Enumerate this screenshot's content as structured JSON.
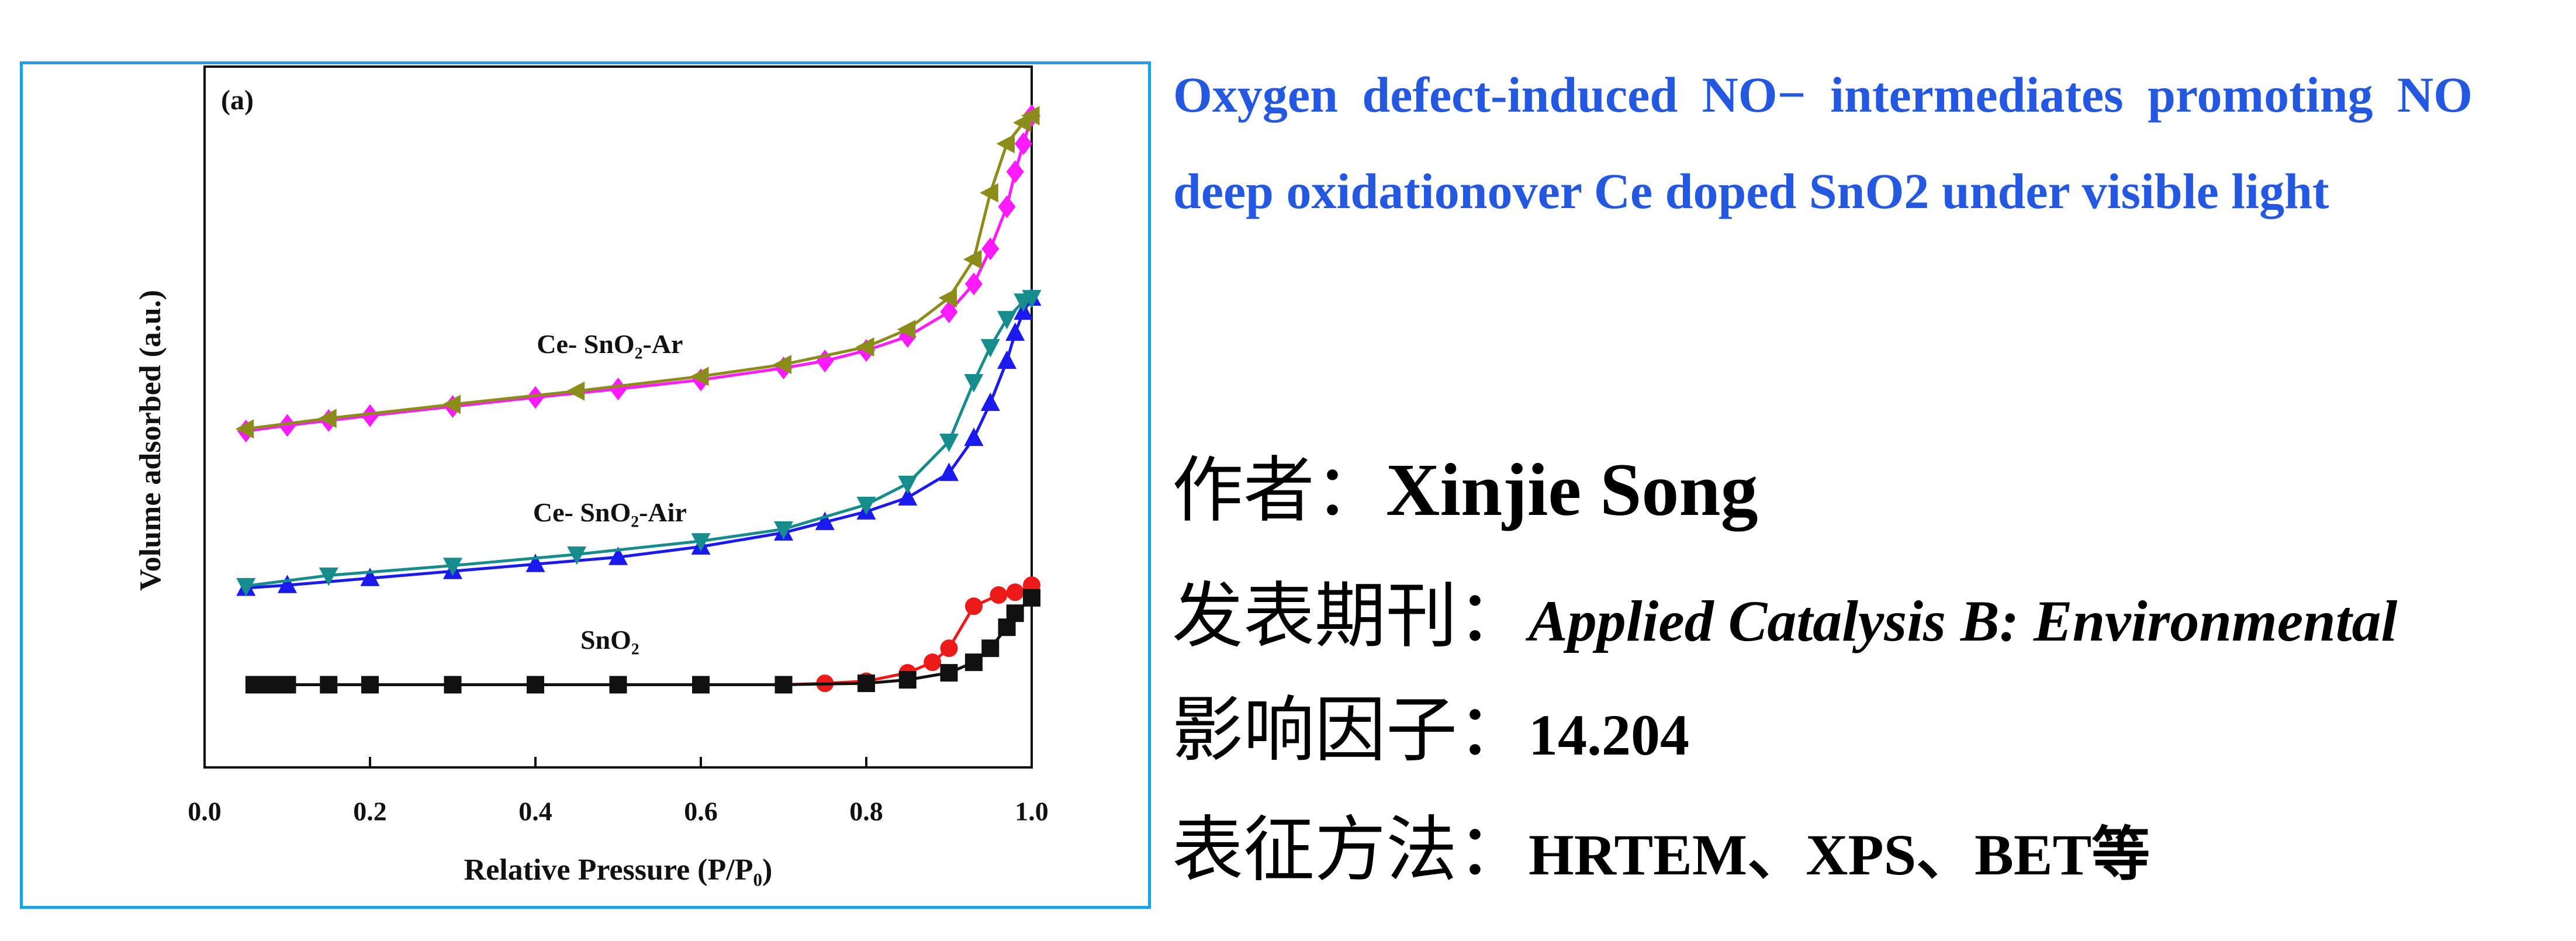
{
  "chart_data": {
    "type": "line",
    "panel_label": "(a)",
    "x_label": "Relative Pressure (P/P₀)",
    "y_label": "Volume adsorbed (a.u.)",
    "xlim": [
      0,
      1
    ],
    "ylim": [
      0,
      100
    ],
    "xticks": [
      {
        "value": 0,
        "label": "0.0"
      },
      {
        "value": 0.2,
        "label": "0.2"
      },
      {
        "value": 0.4,
        "label": "0.4"
      },
      {
        "value": 0.6,
        "label": "0.6"
      },
      {
        "value": 0.8,
        "label": "0.8"
      },
      {
        "value": 1,
        "label": "1.0"
      }
    ],
    "groups": [
      {
        "name": "Ce- SnO₂-Ar",
        "series": [
          {
            "color": "#ff1aff",
            "marker": "diamond",
            "x": [
              0.05,
              0.1,
              0.15,
              0.2,
              0.3,
              0.4,
              0.5,
              0.6,
              0.7,
              0.75,
              0.8,
              0.85,
              0.9,
              0.93,
              0.95,
              0.97,
              0.98,
              0.99,
              1.0
            ],
            "values": [
              48,
              48.8,
              49.5,
              50.2,
              51.5,
              52.8,
              54,
              55.3,
              57,
              58,
              59.5,
              61.5,
              65,
              69,
              74,
              80,
              85,
              89,
              93
            ]
          },
          {
            "color": "#8c8c1a",
            "marker": "triangle-left",
            "x": [
              0.05,
              0.15,
              0.3,
              0.45,
              0.6,
              0.7,
              0.8,
              0.85,
              0.9,
              0.93,
              0.95,
              0.97,
              0.99,
              1.0
            ],
            "values": [
              48.3,
              49.8,
              51.8,
              53.7,
              55.8,
              57.5,
              60,
              62.5,
              67,
              72.5,
              82,
              89,
              92,
              93
            ]
          }
        ]
      },
      {
        "name": "Ce- SnO₂-Air",
        "series": [
          {
            "color": "#1a1aee",
            "marker": "triangle-up",
            "x": [
              0.05,
              0.1,
              0.2,
              0.3,
              0.4,
              0.5,
              0.6,
              0.7,
              0.75,
              0.8,
              0.85,
              0.9,
              0.93,
              0.95,
              0.97,
              0.98,
              0.99,
              1.0
            ],
            "values": [
              25.6,
              26,
              27,
              28,
              29,
              30,
              31.5,
              33.5,
              35,
              36.5,
              38.5,
              42,
              47,
              52,
              58,
              62,
              65,
              67
            ]
          },
          {
            "color": "#178c8c",
            "marker": "triangle-down",
            "x": [
              0.05,
              0.15,
              0.3,
              0.45,
              0.6,
              0.7,
              0.8,
              0.85,
              0.9,
              0.93,
              0.95,
              0.97,
              0.99,
              1.0
            ],
            "values": [
              25.9,
              27.4,
              28.8,
              30.4,
              32.3,
              34,
              37.5,
              40.5,
              46.5,
              55,
              60,
              64,
              66.5,
              67
            ]
          }
        ]
      },
      {
        "name": "SnO₂",
        "series": [
          {
            "color": "#ee1a1a",
            "marker": "circle",
            "x": [
              0.06,
              0.1,
              0.15,
              0.2,
              0.3,
              0.4,
              0.5,
              0.6,
              0.7,
              0.75,
              0.8,
              0.85,
              0.88,
              0.9,
              0.93,
              0.96,
              0.98,
              1.0
            ],
            "values": [
              11.8,
              11.8,
              11.8,
              11.8,
              11.8,
              11.8,
              11.8,
              11.8,
              11.8,
              12,
              12.3,
              13.5,
              15,
              17,
              23,
              24.6,
              25,
              26
            ]
          },
          {
            "color": "#111111",
            "marker": "square",
            "x": [
              0.06,
              0.08,
              0.1,
              0.15,
              0.2,
              0.3,
              0.4,
              0.5,
              0.6,
              0.7,
              0.8,
              0.85,
              0.9,
              0.93,
              0.95,
              0.97,
              0.98,
              1.0
            ],
            "values": [
              11.8,
              11.8,
              11.8,
              11.8,
              11.8,
              11.8,
              11.8,
              11.8,
              11.8,
              11.8,
              12,
              12.5,
              13.5,
              15,
              17,
              20,
              22,
              24.2
            ]
          }
        ]
      }
    ]
  },
  "paper": {
    "title": "Oxygen defect-induced NO− intermediates promoting NO deep oxidationover Ce doped SnO2 under visible light",
    "fields": [
      {
        "label": "作者：",
        "value": "Xinjie Song"
      },
      {
        "label": "发表期刊：",
        "value": "Applied Catalysis B: Environmental"
      },
      {
        "label": "影响因子：",
        "value": "14.204"
      },
      {
        "label": "表征方法：",
        "value": "HRTEM、XPS、BET等"
      }
    ]
  }
}
